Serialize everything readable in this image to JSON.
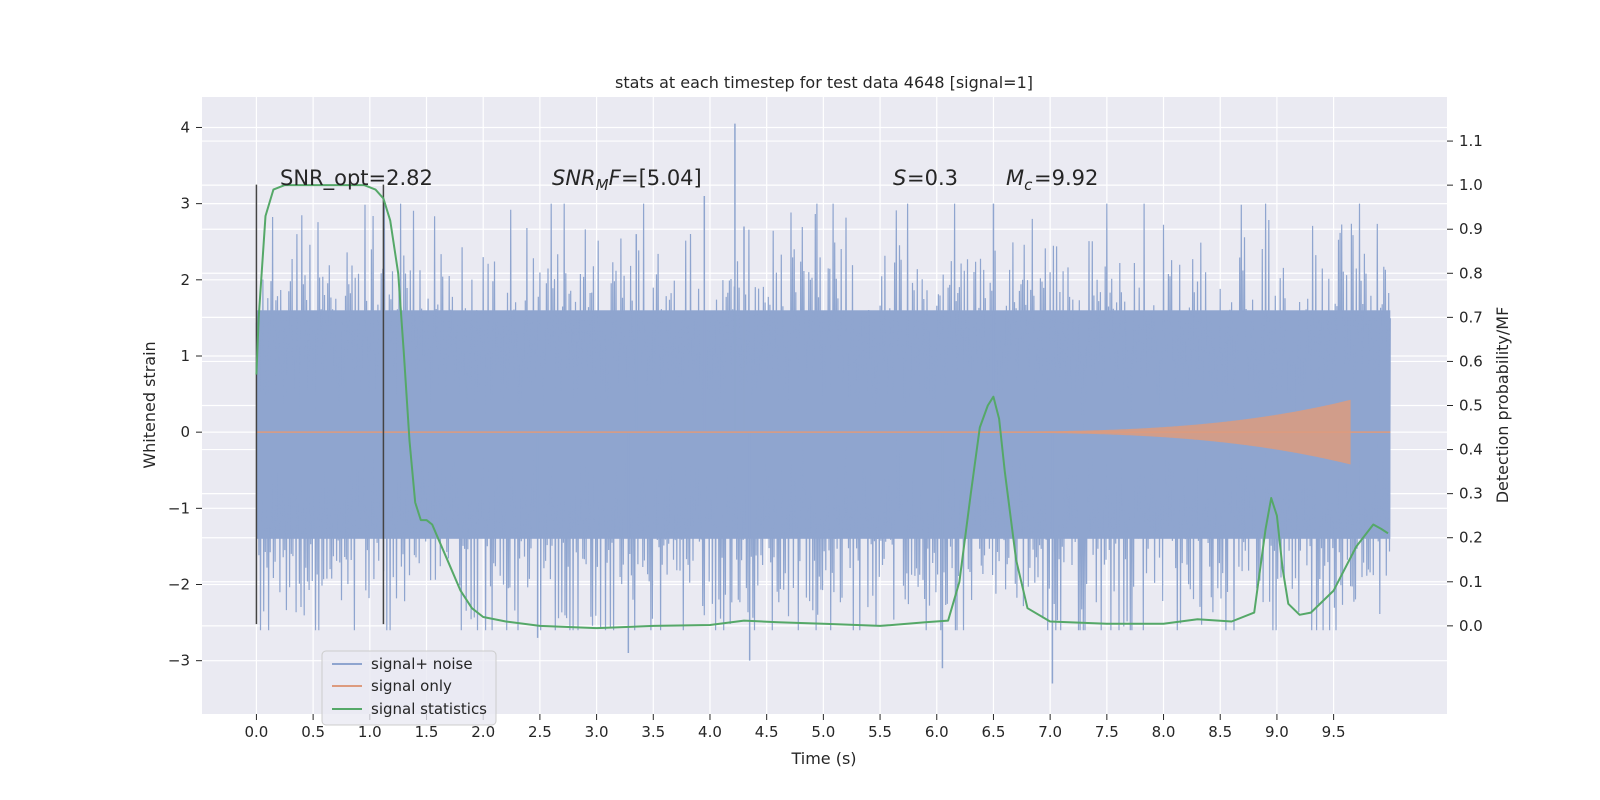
{
  "chart_data": {
    "type": "line",
    "title": "stats at each timestep for test data 4648 [signal=1]",
    "xlabel": "Time (s)",
    "ylabel": "Whitened strain",
    "y2label": "Detection probability/MF",
    "xlim": [
      -0.48,
      10.5
    ],
    "ylim": [
      -3.7,
      4.4
    ],
    "y2lim": [
      -0.2,
      1.2
    ],
    "xticks": [
      "0.0",
      "0.5",
      "1.0",
      "1.5",
      "2.0",
      "2.5",
      "3.0",
      "3.5",
      "4.0",
      "4.5",
      "5.0",
      "5.5",
      "6.0",
      "6.5",
      "7.0",
      "7.5",
      "8.0",
      "8.5",
      "9.0",
      "9.5"
    ],
    "yticks": [
      "−3",
      "−2",
      "−1",
      "0",
      "1",
      "2",
      "3",
      "4"
    ],
    "y2ticks": [
      "0.0",
      "0.1",
      "0.2",
      "0.3",
      "0.4",
      "0.5",
      "0.6",
      "0.7",
      "0.8",
      "0.9",
      "1.0",
      "1.1"
    ],
    "grid": true,
    "legend_position": "lower-left",
    "annotations": {
      "snr_opt": "SNR_opt=2.82",
      "snr_mf": "=[5.04]",
      "s_value": "=0.3",
      "mc_value": "=9.92"
    },
    "vertical_markers": [
      0.0,
      1.12
    ],
    "series": [
      {
        "name": "signal+ noise",
        "color": "#8fa5cf",
        "t_range": [
          0.0,
          10.0
        ],
        "band": [
          -1.4,
          1.6
        ],
        "spikes_max": [
          4.05,
          3.1,
          3.0,
          2.7,
          2.6
        ],
        "spikes_min": [
          -3.3,
          -3.1,
          -3.0,
          -2.9,
          -2.7
        ]
      },
      {
        "name": "signal only",
        "color": "#dd9b7e",
        "t_range": [
          0.0,
          10.0
        ],
        "chirp_end": 9.65,
        "peak_amplitude": 0.42
      },
      {
        "name": "signal statistics",
        "color": "#55a868",
        "axis": "right",
        "x": [
          0.0,
          0.02,
          0.08,
          0.15,
          0.25,
          0.5,
          0.8,
          0.95,
          1.05,
          1.12,
          1.18,
          1.25,
          1.3,
          1.35,
          1.4,
          1.45,
          1.5,
          1.55,
          1.6,
          1.7,
          1.8,
          1.9,
          2.0,
          2.2,
          2.5,
          3.0,
          3.5,
          4.0,
          4.3,
          4.6,
          5.0,
          5.5,
          5.9,
          6.1,
          6.2,
          6.3,
          6.38,
          6.45,
          6.5,
          6.55,
          6.6,
          6.7,
          6.8,
          7.0,
          7.5,
          8.0,
          8.3,
          8.6,
          8.8,
          8.9,
          8.95,
          9.0,
          9.05,
          9.1,
          9.2,
          9.3,
          9.5,
          9.7,
          9.85,
          9.92,
          9.98
        ],
        "y": [
          0.57,
          0.7,
          0.93,
          0.99,
          1.0,
          1.0,
          1.0,
          1.0,
          0.99,
          0.97,
          0.92,
          0.8,
          0.62,
          0.42,
          0.28,
          0.24,
          0.24,
          0.23,
          0.2,
          0.14,
          0.08,
          0.04,
          0.02,
          0.01,
          0.0,
          -0.005,
          0.0,
          0.002,
          0.012,
          0.008,
          0.005,
          0.0,
          0.008,
          0.012,
          0.1,
          0.3,
          0.45,
          0.5,
          0.52,
          0.47,
          0.35,
          0.15,
          0.04,
          0.01,
          0.005,
          0.005,
          0.015,
          0.01,
          0.03,
          0.22,
          0.29,
          0.25,
          0.13,
          0.05,
          0.025,
          0.03,
          0.08,
          0.18,
          0.23,
          0.22,
          0.21
        ]
      }
    ]
  }
}
